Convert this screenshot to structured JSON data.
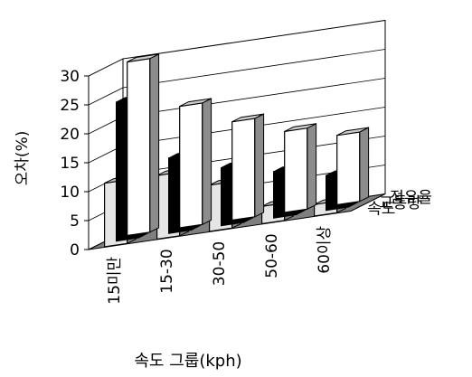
{
  "chart_data": {
    "type": "bar",
    "projection": "3d",
    "grid": true,
    "legend": "none",
    "xlabel": "속도 그룹(kph)",
    "ylabel": "오차(%)",
    "ylim": [
      0,
      30
    ],
    "yticks": [
      0,
      5,
      10,
      15,
      20,
      25,
      30
    ],
    "categories": [
      "15미만",
      "15-30",
      "30-50",
      "50-60",
      "60이상"
    ],
    "series": [
      {
        "name": "점유율",
        "values": [
          30,
          21,
          17,
          14,
          12
        ],
        "color": "#ffffff"
      },
      {
        "name": "교통량",
        "values": [
          24,
          13,
          10,
          8,
          6
        ],
        "color": "#000000"
      },
      {
        "name": "속도",
        "values": [
          11,
          11,
          8,
          3,
          2
        ],
        "color": "#e6e6e6"
      }
    ]
  }
}
